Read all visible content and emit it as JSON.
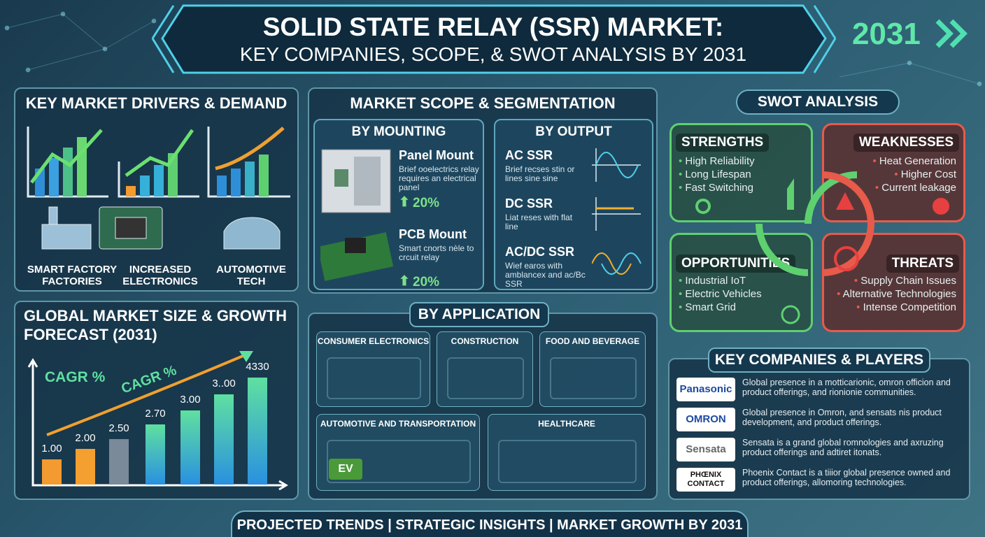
{
  "header": {
    "title_line1": "SOLID STATE RELAY (SSR) MARKET:",
    "title_line2": "KEY COMPANIES, SCOPE, & SWOT ANALYSIS BY 2031",
    "year": "2031"
  },
  "drivers": {
    "title": "KEY MARKET DRIVERS & DEMAND",
    "items": [
      {
        "lines": [
          "SMART FACTORY",
          "FACTORIES"
        ]
      },
      {
        "lines": [
          "INCREASED",
          "ELECTRONICS"
        ]
      },
      {
        "lines": [
          "AUTOMOTIVE",
          "TECH"
        ]
      }
    ]
  },
  "scope": {
    "title": "MARKET SCOPE & SEGMENTATION",
    "mounting": {
      "title": "BY MOUNTING",
      "items": [
        {
          "name": "Panel Mount",
          "desc": "Brief ooelectrics relay requires an electrical panel",
          "growth": "20%"
        },
        {
          "name": "PCB Mount",
          "desc": "Smart cnorts nèle to crcuit relay",
          "growth": "20%"
        }
      ]
    },
    "output": {
      "title": "BY OUTPUT",
      "items": [
        {
          "name": "AC SSR",
          "desc": "Brief recses stin or lines sine sine"
        },
        {
          "name": "DC SSR",
          "desc": "Liat reses with flat line"
        },
        {
          "name": "AC/DC SSR",
          "desc": "Wief earos with amblancex and ac/Bc SSR"
        }
      ]
    }
  },
  "market": {
    "title": "GLOBAL MARKET SIZE & GROWTH FORECAST (2031)",
    "cagr_label": "CAGR %",
    "trend_label": "CAGR %",
    "bar_labels": [
      "1.00",
      "2.00",
      "2.50",
      "2.70",
      "3.00",
      "3..00",
      "4330"
    ]
  },
  "application": {
    "title": "BY APPLICATION",
    "items": [
      "CONSUMER ELECTRONICS",
      "CONSTRUCTION",
      "FOOD AND BEVERAGE",
      "AUTOMOTIVE AND TRANSPORTATION",
      "HEALTHCARE"
    ],
    "ev_label": "EV"
  },
  "swot": {
    "title": "SWOT ANALYSIS",
    "strengths": {
      "title": "STRENGTHS",
      "items": [
        "High Reliability",
        "Long Lifespan",
        "Fast Switching"
      ]
    },
    "weaknesses": {
      "title": "WEAKNESSES",
      "items": [
        "Heat Generation",
        "Higher Cost",
        "Current leakage"
      ]
    },
    "opportunities": {
      "title": "OPPORTUNITIES",
      "items": [
        "Industrial IoT",
        "Electric Vehicles",
        "Smart Grid"
      ]
    },
    "threats": {
      "title": "THREATS",
      "items": [
        "Supply Chain Issues",
        "Alternative Technologies",
        "Intense Competition"
      ]
    }
  },
  "companies": {
    "title": "KEY COMPANIES & PLAYERS",
    "items": [
      {
        "logo": "Panasonic",
        "text": "Global presence in a motticarionic, omron officion and product offerings, and rionionie communities."
      },
      {
        "logo": "OMRON",
        "text": "Global presence in Omron, and sensats nis product development, and product offerings."
      },
      {
        "logo": "Sensata",
        "text": "Sensata is a grand global romnologies and axruzing product offerings and adtiret itonats."
      },
      {
        "logo": "PHŒNIX CONTACT",
        "text": "Phoenix Contact is a tiiior global presence owned and product offerings, allomoring technologies."
      }
    ]
  },
  "footer": {
    "text": "PROJECTED TRENDS | STRATEGIC INSIGHTS | MARKET GROWTH BY 2031"
  }
}
